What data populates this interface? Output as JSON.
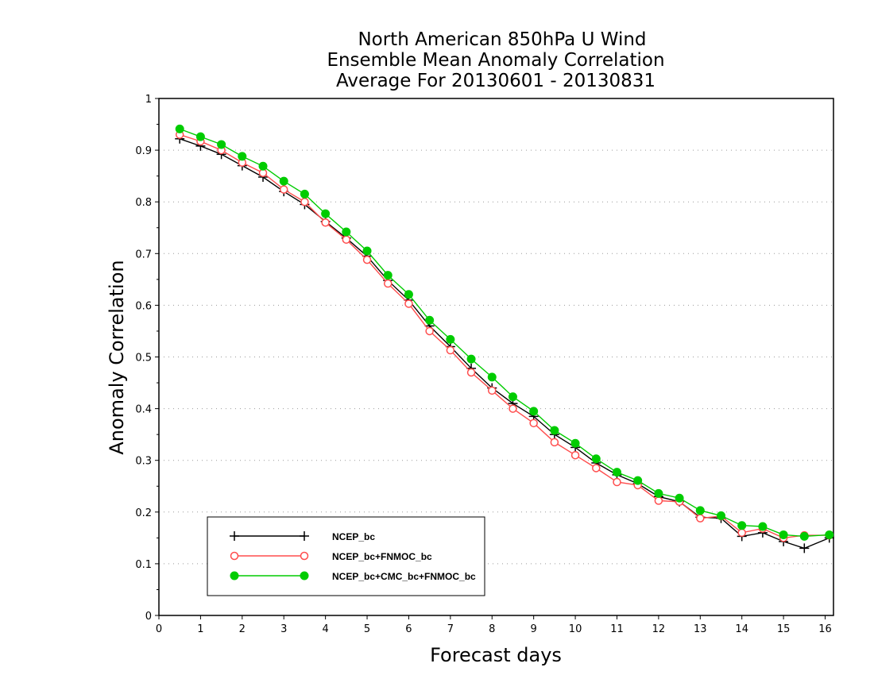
{
  "chart_data": {
    "type": "line",
    "title_lines": [
      "North American 850hPa U Wind",
      "Ensemble Mean Anomaly Correlation",
      "Average For 20130601 - 20130831"
    ],
    "xlabel": "Forecast days",
    "ylabel": "Anomaly Correlation",
    "xlim": [
      0,
      16.2
    ],
    "ylim": [
      0,
      1
    ],
    "x_ticks": [
      "0",
      "1",
      "2",
      "3",
      "4",
      "5",
      "6",
      "7",
      "8",
      "9",
      "10",
      "11",
      "12",
      "13",
      "14",
      "15",
      "16"
    ],
    "y_ticks": [
      "0",
      "0.1",
      "0.2",
      "0.3",
      "0.4",
      "0.5",
      "0.6",
      "0.7",
      "0.8",
      "0.9",
      "1"
    ],
    "grid": "horizontal dotted",
    "legend_position": "bottom-left",
    "x": [
      0.5,
      1,
      1.5,
      2,
      2.5,
      3,
      3.5,
      4,
      4.5,
      5,
      5.5,
      6,
      6.5,
      7,
      7.5,
      8,
      8.5,
      9,
      9.5,
      10,
      10.5,
      11,
      11.5,
      12,
      12.5,
      13,
      13.5,
      14,
      14.5,
      15,
      15.5,
      16.1
    ],
    "series": [
      {
        "name": "NCEP_bc",
        "color": "#000000",
        "marker": "plus",
        "values": [
          0.922,
          0.908,
          0.892,
          0.87,
          0.848,
          0.82,
          0.795,
          0.762,
          0.73,
          0.695,
          0.648,
          0.61,
          0.56,
          0.52,
          0.478,
          0.44,
          0.41,
          0.385,
          0.35,
          0.325,
          0.295,
          0.272,
          0.255,
          0.23,
          0.22,
          0.19,
          0.188,
          0.153,
          0.16,
          0.143,
          0.13,
          0.15
        ]
      },
      {
        "name": "NCEP_bc+FNMOC_bc",
        "color": "#ff4d4d",
        "marker": "open-circle",
        "values": [
          0.93,
          0.917,
          0.9,
          0.876,
          0.856,
          0.824,
          0.8,
          0.76,
          0.727,
          0.688,
          0.642,
          0.603,
          0.55,
          0.513,
          0.47,
          0.435,
          0.4,
          0.372,
          0.335,
          0.31,
          0.285,
          0.258,
          0.252,
          0.222,
          0.22,
          0.188,
          0.192,
          0.16,
          0.168,
          0.15,
          0.155,
          0.155
        ]
      },
      {
        "name": "NCEP_bc+CMC_bc+FNMOC_bc",
        "color": "#00cc00",
        "marker": "filled-circle",
        "values": [
          0.941,
          0.926,
          0.911,
          0.888,
          0.869,
          0.84,
          0.815,
          0.777,
          0.742,
          0.705,
          0.658,
          0.621,
          0.571,
          0.534,
          0.496,
          0.461,
          0.423,
          0.395,
          0.358,
          0.333,
          0.303,
          0.277,
          0.261,
          0.236,
          0.227,
          0.203,
          0.193,
          0.174,
          0.172,
          0.156,
          0.153,
          0.156
        ]
      }
    ]
  }
}
